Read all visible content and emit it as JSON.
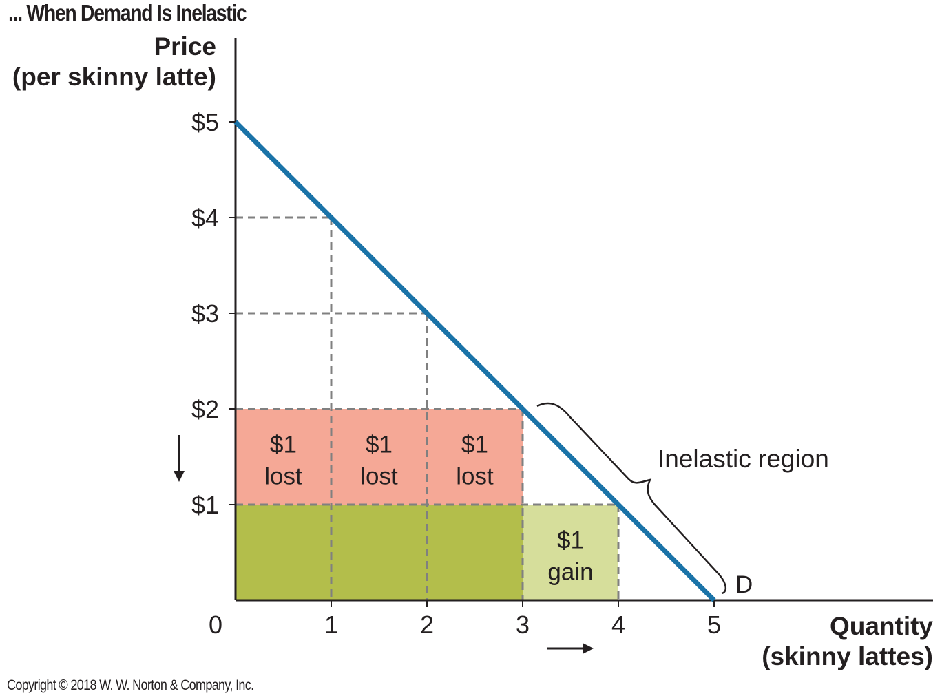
{
  "title": "... When Demand Is Inelastic",
  "copyright": "Copyright © 2018 W. W. Norton & Company, Inc.",
  "chart_data": {
    "type": "line",
    "title": "... When Demand Is Inelastic",
    "ylabel_line1": "Price",
    "ylabel_line2": "(per skinny latte)",
    "xlabel_line1": "Quantity",
    "xlabel_line2": "(skinny lattes)",
    "origin_label": "0",
    "xlim": [
      0,
      5
    ],
    "ylim": [
      0,
      5
    ],
    "x_ticks": [
      {
        "value": 1,
        "label": "1"
      },
      {
        "value": 2,
        "label": "2"
      },
      {
        "value": 3,
        "label": "3"
      },
      {
        "value": 4,
        "label": "4"
      },
      {
        "value": 5,
        "label": "5"
      }
    ],
    "y_ticks": [
      {
        "value": 1,
        "label": "$1"
      },
      {
        "value": 2,
        "label": "$2"
      },
      {
        "value": 3,
        "label": "$3"
      },
      {
        "value": 4,
        "label": "$4"
      },
      {
        "value": 5,
        "label": "$5"
      }
    ],
    "series": [
      {
        "name": "D",
        "x": [
          0,
          5
        ],
        "y": [
          5,
          0
        ],
        "color": "#1a73a8"
      }
    ],
    "guides": [
      {
        "x": 1,
        "y": 4
      },
      {
        "x": 2,
        "y": 3
      },
      {
        "x": 3,
        "y": 2
      },
      {
        "x": 4,
        "y": 1
      }
    ],
    "regions": [
      {
        "x0": 0,
        "x1": 1,
        "y0": 1,
        "y1": 2,
        "color": "#f5a896",
        "line1": "$1",
        "line2": "lost"
      },
      {
        "x0": 1,
        "x1": 2,
        "y0": 1,
        "y1": 2,
        "color": "#f5a896",
        "line1": "$1",
        "line2": "lost"
      },
      {
        "x0": 2,
        "x1": 3,
        "y0": 1,
        "y1": 2,
        "color": "#f5a896",
        "line1": "$1",
        "line2": "lost"
      },
      {
        "x0": 0,
        "x1": 3,
        "y0": 0,
        "y1": 1,
        "color": "#b3be4b",
        "line1": "",
        "line2": ""
      },
      {
        "x0": 3,
        "x1": 4,
        "y0": 0,
        "y1": 1,
        "color": "#d6de9b",
        "line1": "$1",
        "line2": "gain"
      }
    ],
    "annotations": {
      "region_label": "Inelastic region",
      "curve_label": "D",
      "price_arrow": "down",
      "quantity_arrow": "right"
    },
    "colors": {
      "axis": "#231f20",
      "grid_dash": "#808080",
      "demand": "#1a73a8",
      "lost": "#f5a896",
      "kept": "#b3be4b",
      "gain": "#d6de9b"
    }
  }
}
